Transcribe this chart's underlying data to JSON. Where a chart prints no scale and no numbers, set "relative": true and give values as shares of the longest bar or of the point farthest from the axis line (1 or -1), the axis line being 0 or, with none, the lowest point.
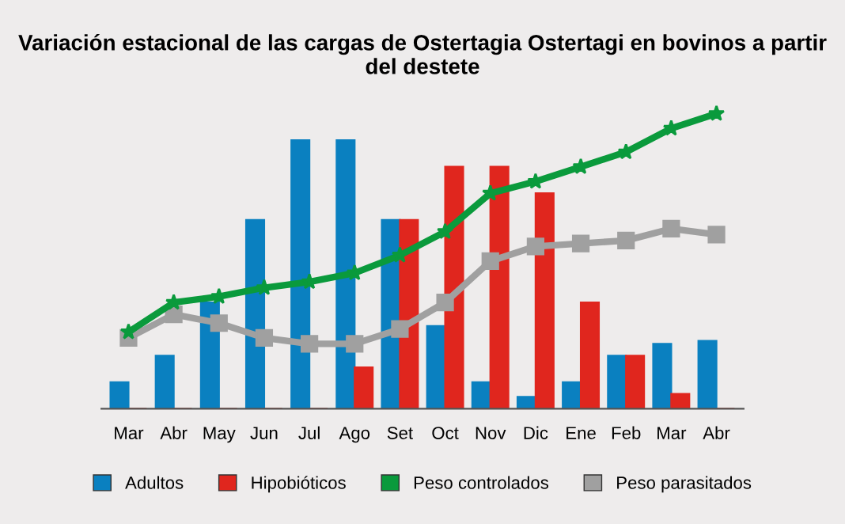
{
  "chart_data": {
    "type": "bar",
    "title": "Variación estacional de las cargas de Ostertagia Ostertagi en bovinos a partir del destete",
    "relative": true,
    "categories": [
      "Mar",
      "Abr",
      "May",
      "Jun",
      "Jul",
      "Ago",
      "Set",
      "Oct",
      "Nov",
      "Dic",
      "Ene",
      "Feb",
      "Mar",
      "Abr"
    ],
    "series": [
      {
        "name": "Adultos",
        "color": "#0a80c0",
        "values": [
          0.09,
          0.18,
          0.36,
          0.64,
          0.91,
          0.91,
          0.64,
          0.28,
          0.09,
          0.04,
          0.09,
          0.18,
          0.22,
          0.23
        ]
      },
      {
        "name": "Hipobióticos",
        "color": "#e0261e",
        "values": [
          0,
          0,
          0,
          0,
          0,
          0.14,
          0.64,
          0.82,
          0.82,
          0.73,
          0.36,
          0.18,
          0.05,
          0
        ]
      },
      {
        "name": "Peso controlados",
        "type": "line",
        "color": "#0a9a3c",
        "marker": "star",
        "values": [
          0.26,
          0.36,
          0.38,
          0.41,
          0.43,
          0.46,
          0.52,
          0.6,
          0.73,
          0.77,
          0.82,
          0.87,
          0.95,
          1.0
        ]
      },
      {
        "name": "Peso parasitados",
        "type": "line",
        "color": "#a0a0a0",
        "marker": "square",
        "values": [
          0.24,
          0.32,
          0.29,
          0.24,
          0.22,
          0.22,
          0.27,
          0.36,
          0.5,
          0.55,
          0.56,
          0.57,
          0.61,
          0.59
        ]
      }
    ],
    "legend": "bottom",
    "grid": false
  }
}
